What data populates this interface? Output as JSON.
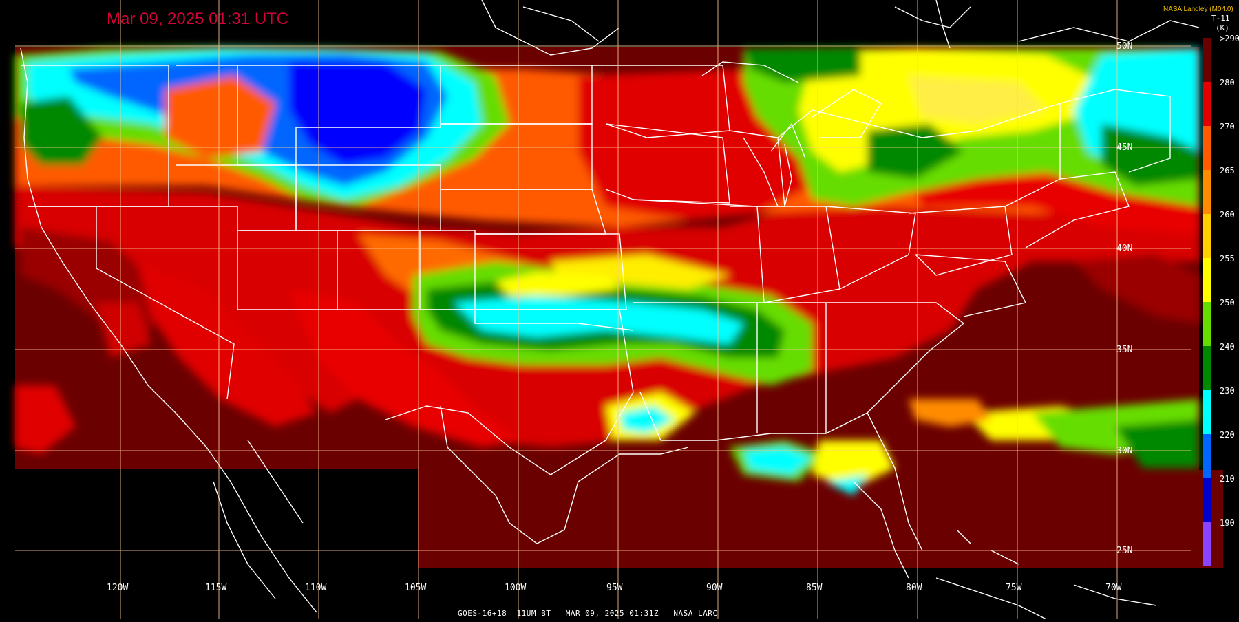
{
  "title": "Mar 09, 2025 01:31 UTC",
  "credit": "NASA Langley (M04.0)",
  "product": {
    "label": "T-11",
    "unit": "(K)"
  },
  "footer": "GOES-16+18  11UM BT   MAR 09, 2025 01:31Z   NASA LARC",
  "colorbar": {
    "stops": [
      {
        "label": ">290",
        "color": "#6b0000"
      },
      {
        "label": "280",
        "color": "#e20000"
      },
      {
        "label": "270",
        "color": "#ff5a00"
      },
      {
        "label": "265",
        "color": "#ff8c00"
      },
      {
        "label": "260",
        "color": "#ffd000"
      },
      {
        "label": "255",
        "color": "#ffff00"
      },
      {
        "label": "250",
        "color": "#66dd00"
      },
      {
        "label": "240",
        "color": "#008800"
      },
      {
        "label": "230",
        "color": "#00ffff"
      },
      {
        "label": "220",
        "color": "#0066ff"
      },
      {
        "label": "210",
        "color": "#0000cc"
      },
      {
        "label": "190",
        "color": "#8844ff"
      }
    ]
  },
  "grid": {
    "lon_labels": [
      "120W",
      "115W",
      "110W",
      "105W",
      "100W",
      "95W",
      "90W",
      "85W",
      "80W",
      "75W",
      "70W"
    ],
    "lat_labels": [
      "50N",
      "45N",
      "40N",
      "35N",
      "30N",
      "25N"
    ],
    "line_color": "#ffc890"
  }
}
